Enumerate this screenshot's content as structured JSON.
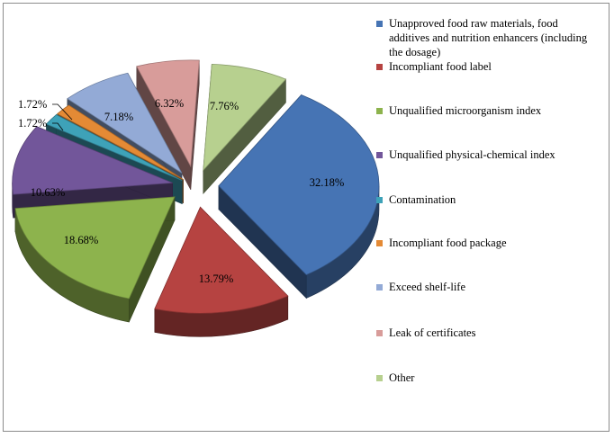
{
  "chart_data": {
    "type": "pie",
    "title": "",
    "style": "exploded-3d",
    "unit": "%",
    "legend_position": "right",
    "categories": [
      "Unapproved food raw materials, food additives and nutrition enhancers (including the dosage)",
      "Incompliant food label",
      "Unqualified microorganism index",
      "Unqualified physical-chemical index",
      "Contamination",
      "Incompliant food package",
      "Exceed shelf-life",
      "Leak of certificates",
      "Other"
    ],
    "values": [
      32.18,
      13.79,
      18.68,
      10.63,
      1.72,
      1.72,
      7.18,
      6.32,
      7.76
    ],
    "labels": [
      "32.18%",
      "13.79%",
      "18.68%",
      "10.63%",
      "1.72%",
      "1.72%",
      "7.18%",
      "6.32%",
      "7.76%"
    ],
    "colors": [
      "#4674b4",
      "#b64341",
      "#8db34d",
      "#72569a",
      "#3ea2b8",
      "#e48a35",
      "#93aad6",
      "#d89c9a",
      "#b7d08f"
    ]
  }
}
